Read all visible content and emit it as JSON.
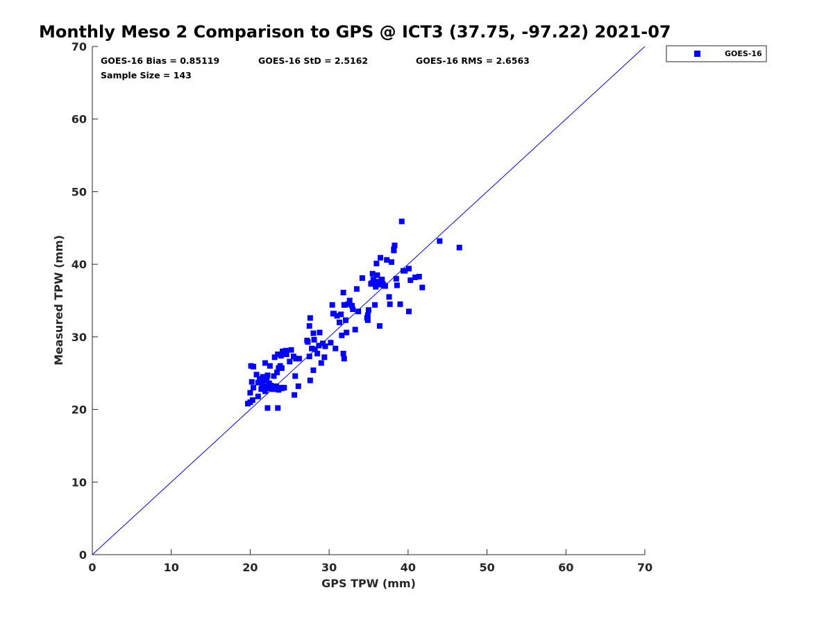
{
  "chart_data": {
    "type": "scatter",
    "title": "Monthly Meso 2 Comparison to GPS @ ICT3 (37.75, -97.22) 2021-07",
    "xlabel": "GPS TPW (mm)",
    "ylabel": "Measured TPW (mm)",
    "xlim": [
      0,
      70
    ],
    "ylim": [
      0,
      70
    ],
    "xticks": [
      "0",
      "10",
      "20",
      "30",
      "40",
      "50",
      "60",
      "70"
    ],
    "yticks": [
      "0",
      "10",
      "20",
      "30",
      "40",
      "50",
      "60",
      "70"
    ],
    "grid": false,
    "legend_position": "top-right, outside plot",
    "reference_line": {
      "from": [
        0,
        0
      ],
      "to": [
        70,
        70
      ],
      "color": "#0000ff"
    },
    "stats": {
      "bias": "GOES-16 Bias = 0.85119",
      "std": "GOES-16 StD = 2.5162",
      "rms": "GOES-16 RMS = 2.6563",
      "sample": "Sample Size = 143"
    },
    "series": [
      {
        "name": "GOES-16",
        "color": "#0000ff",
        "marker": "square",
        "points": [
          [
            19.7,
            20.8
          ],
          [
            20.0,
            21.0
          ],
          [
            20.3,
            21.3
          ],
          [
            20.0,
            22.3
          ],
          [
            20.4,
            23.0
          ],
          [
            20.2,
            23.8
          ],
          [
            20.4,
            25.9
          ],
          [
            20.1,
            26.0
          ],
          [
            20.8,
            24.8
          ],
          [
            21.0,
            23.7
          ],
          [
            21.2,
            24.2
          ],
          [
            21.0,
            21.8
          ],
          [
            21.4,
            22.8
          ],
          [
            21.5,
            23.5
          ],
          [
            21.6,
            24.5
          ],
          [
            21.7,
            23.0
          ],
          [
            21.9,
            22.5
          ],
          [
            22.0,
            23.2
          ],
          [
            22.1,
            24.0
          ],
          [
            22.2,
            24.7
          ],
          [
            21.9,
            26.4
          ],
          [
            22.3,
            22.9
          ],
          [
            22.4,
            23.6
          ],
          [
            22.5,
            26.0
          ],
          [
            22.2,
            20.2
          ],
          [
            22.6,
            23.3
          ],
          [
            22.8,
            22.8
          ],
          [
            22.9,
            23.0
          ],
          [
            23.0,
            24.6
          ],
          [
            23.1,
            27.2
          ],
          [
            23.2,
            22.8
          ],
          [
            23.4,
            25.1
          ],
          [
            23.5,
            27.6
          ],
          [
            23.6,
            25.7
          ],
          [
            23.8,
            23.0
          ],
          [
            23.9,
            27.4
          ],
          [
            24.0,
            25.7
          ],
          [
            23.5,
            20.2
          ],
          [
            24.1,
            28.0
          ],
          [
            24.3,
            23.0
          ],
          [
            24.5,
            28.1
          ],
          [
            24.6,
            27.6
          ],
          [
            25.0,
            26.6
          ],
          [
            25.2,
            28.2
          ],
          [
            25.5,
            27.3
          ],
          [
            25.6,
            22.0
          ],
          [
            25.7,
            24.6
          ],
          [
            26.1,
            23.2
          ],
          [
            26.2,
            27.0
          ],
          [
            25.8,
            27.0
          ],
          [
            23.6,
            22.7
          ],
          [
            22.6,
            22.9
          ],
          [
            21.3,
            23.9
          ],
          [
            23.8,
            26.0
          ],
          [
            24.0,
            22.9
          ],
          [
            23.3,
            23.2
          ],
          [
            22.0,
            24.1
          ],
          [
            21.8,
            23.2
          ],
          [
            27.3,
            29.3
          ],
          [
            27.5,
            27.3
          ],
          [
            27.6,
            32.6
          ],
          [
            27.5,
            31.5
          ],
          [
            27.6,
            24.0
          ],
          [
            27.8,
            28.4
          ],
          [
            28.0,
            30.5
          ],
          [
            28.0,
            25.4
          ],
          [
            28.2,
            28.3
          ],
          [
            28.5,
            27.7
          ],
          [
            28.7,
            28.8
          ],
          [
            28.8,
            30.6
          ],
          [
            29.0,
            26.4
          ],
          [
            29.2,
            29.1
          ],
          [
            29.4,
            27.2
          ],
          [
            29.5,
            28.7
          ],
          [
            27.2,
            29.5
          ],
          [
            28.1,
            29.6
          ],
          [
            30.2,
            29.2
          ],
          [
            30.4,
            34.4
          ],
          [
            30.6,
            33.2
          ],
          [
            30.8,
            28.4
          ],
          [
            31.0,
            32.9
          ],
          [
            31.3,
            32.0
          ],
          [
            31.5,
            33.1
          ],
          [
            31.6,
            30.2
          ],
          [
            31.8,
            36.1
          ],
          [
            31.8,
            27.7
          ],
          [
            31.9,
            27.0
          ],
          [
            32.0,
            34.4
          ],
          [
            32.1,
            32.3
          ],
          [
            32.2,
            30.6
          ],
          [
            32.4,
            34.5
          ],
          [
            32.6,
            35.0
          ],
          [
            33.0,
            33.8
          ],
          [
            33.3,
            31.0
          ],
          [
            33.5,
            36.6
          ],
          [
            33.7,
            33.5
          ],
          [
            34.2,
            38.1
          ],
          [
            34.9,
            32.3
          ],
          [
            34.9,
            33.0
          ],
          [
            35.0,
            33.7
          ],
          [
            35.4,
            37.4
          ],
          [
            35.5,
            38.7
          ],
          [
            35.6,
            37.9
          ],
          [
            35.8,
            34.4
          ],
          [
            35.9,
            37.2
          ],
          [
            36.0,
            40.1
          ],
          [
            36.1,
            38.5
          ],
          [
            36.2,
            37.6
          ],
          [
            36.3,
            37.2
          ],
          [
            36.4,
            31.5
          ],
          [
            36.5,
            40.9
          ],
          [
            36.6,
            37.7
          ],
          [
            36.8,
            37.3
          ],
          [
            36.9,
            37.1
          ],
          [
            37.1,
            37.0
          ],
          [
            37.3,
            40.6
          ],
          [
            37.6,
            35.5
          ],
          [
            37.7,
            34.5
          ],
          [
            37.9,
            40.3
          ],
          [
            38.2,
            42.1
          ],
          [
            38.3,
            42.6
          ],
          [
            38.5,
            38.0
          ],
          [
            38.6,
            37.1
          ],
          [
            39.0,
            34.5
          ],
          [
            39.2,
            45.9
          ],
          [
            39.4,
            39.1
          ],
          [
            39.6,
            39.1
          ],
          [
            40.1,
            39.4
          ],
          [
            40.1,
            33.5
          ],
          [
            40.3,
            37.8
          ],
          [
            40.9,
            38.2
          ],
          [
            41.4,
            38.3
          ],
          [
            41.8,
            36.8
          ],
          [
            44.0,
            43.2
          ],
          [
            46.5,
            42.3
          ],
          [
            35.3,
            37.3
          ],
          [
            35.9,
            36.9
          ],
          [
            36.7,
            37.9
          ],
          [
            38.2,
            41.9
          ],
          [
            30.5,
            33.2
          ],
          [
            31.9,
            34.4
          ],
          [
            32.9,
            34.3
          ],
          [
            34.8,
            32.6
          ]
        ]
      }
    ]
  }
}
